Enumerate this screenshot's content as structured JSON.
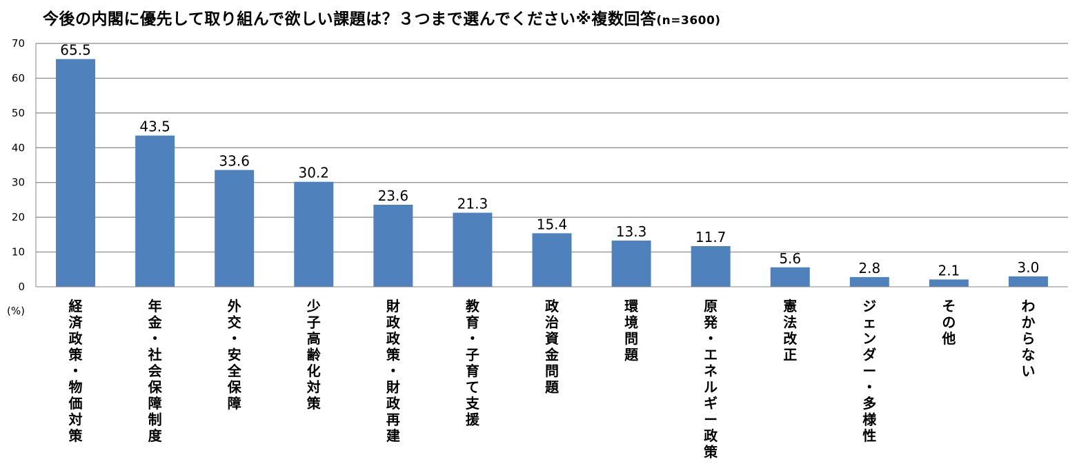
{
  "chart_data": {
    "type": "bar",
    "title": "今後の内閣に優先して取り組んで欲しい課題は？３つまで選んでください※複数回答",
    "subtitle": "(n=3600)",
    "ylabel": "(%)",
    "ylim": [
      0,
      70
    ],
    "yticks": [
      0,
      10,
      20,
      30,
      40,
      50,
      60,
      70
    ],
    "grid": true,
    "bar_color": "#4f81bd",
    "categories": [
      "経済政策・物価対策",
      "年金・社会保障制度",
      "外交・安全保障",
      "少子高齢化対策",
      "財政政策・財政再建",
      "教育・子育て支援",
      "政治資金問題",
      "環境問題",
      "原発・エネルギー政策",
      "憲法改正",
      "ジェンダー・多様性",
      "その他",
      "わからない"
    ],
    "values": [
      65.5,
      43.5,
      33.6,
      30.2,
      23.6,
      21.3,
      15.4,
      13.3,
      11.7,
      5.6,
      2.8,
      2.1,
      3.0
    ],
    "value_labels": [
      "65.5",
      "43.5",
      "33.6",
      "30.2",
      "23.6",
      "21.3",
      "15.4",
      "13.3",
      "11.7",
      "5.6",
      "2.8",
      "2.1",
      "3.0"
    ]
  }
}
